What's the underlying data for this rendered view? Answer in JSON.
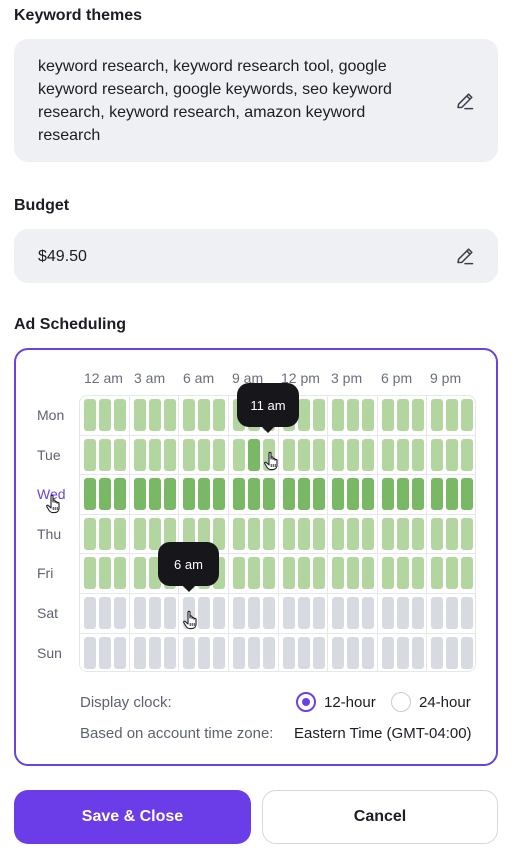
{
  "keyword_themes": {
    "label": "Keyword themes",
    "lines": [
      "keyword research, keyword research tool, google",
      "keyword research, google keywords, seo keyword",
      "research, keyword research, amazon keyword",
      "research"
    ],
    "edit_icon": "pencil-icon"
  },
  "budget": {
    "label": "Budget",
    "value": "$49.50",
    "edit_icon": "pencil-icon"
  },
  "ad_scheduling": {
    "label": "Ad Scheduling",
    "hours": [
      "12 am",
      "3 am",
      "6 am",
      "9 am",
      "12 pm",
      "3 pm",
      "6 pm",
      "9 pm"
    ],
    "days": [
      "Mon",
      "Tue",
      "Wed",
      "Thu",
      "Fri",
      "Sat",
      "Sun"
    ],
    "active_day": "Wed",
    "slot_states": [
      [
        1,
        1,
        1,
        1,
        1,
        1,
        1,
        1,
        1,
        1,
        1,
        1,
        1,
        1,
        1,
        1,
        1,
        1,
        1,
        1,
        1,
        1,
        1,
        1
      ],
      [
        1,
        1,
        1,
        1,
        1,
        1,
        1,
        1,
        1,
        1,
        2,
        1,
        1,
        1,
        1,
        1,
        1,
        1,
        1,
        1,
        1,
        1,
        1,
        1
      ],
      [
        2,
        2,
        2,
        2,
        2,
        2,
        2,
        2,
        2,
        2,
        2,
        2,
        2,
        2,
        2,
        2,
        2,
        2,
        2,
        2,
        2,
        2,
        2,
        2
      ],
      [
        1,
        1,
        1,
        1,
        1,
        1,
        1,
        1,
        1,
        1,
        1,
        1,
        1,
        1,
        1,
        1,
        1,
        1,
        1,
        1,
        1,
        1,
        1,
        1
      ],
      [
        1,
        1,
        1,
        1,
        1,
        1,
        1,
        1,
        1,
        1,
        1,
        1,
        1,
        1,
        1,
        1,
        1,
        1,
        1,
        1,
        1,
        1,
        1,
        1
      ],
      [
        0,
        0,
        0,
        0,
        0,
        0,
        0,
        0,
        0,
        0,
        0,
        0,
        0,
        0,
        0,
        0,
        0,
        0,
        0,
        0,
        0,
        0,
        0,
        0
      ],
      [
        0,
        0,
        0,
        0,
        0,
        0,
        0,
        0,
        0,
        0,
        0,
        0,
        0,
        0,
        0,
        0,
        0,
        0,
        0,
        0,
        0,
        0,
        0,
        0
      ]
    ],
    "tooltips": [
      "11 am",
      "6 am"
    ],
    "display_clock_label": "Display clock:",
    "clock_options": [
      {
        "label": "12-hour",
        "selected": true
      },
      {
        "label": "24-hour",
        "selected": false
      }
    ],
    "timezone_label": "Based on account time zone:",
    "timezone_value": "Eastern Time (GMT-04:00)"
  },
  "actions": {
    "save_label": "Save & Close",
    "cancel_label": "Cancel"
  },
  "colors": {
    "accent": "#6a42e0",
    "slot_off": "#d7dae1",
    "slot_on": "#b3d6a0",
    "slot_strong": "#79b865"
  }
}
